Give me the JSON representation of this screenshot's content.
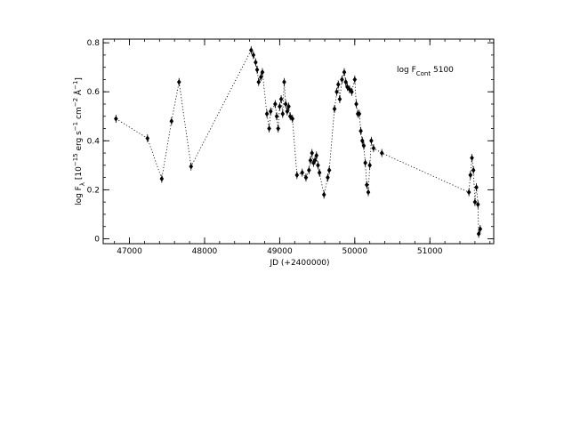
{
  "chart_data": {
    "type": "scatter",
    "title": "",
    "xlabel": "JD (+2400000)",
    "ylabel_parts": {
      "main": "log F",
      "sub": "λ",
      "rest1": " [10",
      "sup1": "−15",
      "rest2": " erg s",
      "sup2": "−1",
      "rest3": " cm",
      "sup3": "−2",
      "rest4": " Å",
      "sup4": "−1",
      "rest5": "]"
    },
    "annotation": {
      "main": "log F",
      "sub": "Cont",
      "rest": " 5100"
    },
    "xlim": [
      46650,
      51850
    ],
    "ylim": [
      -0.02,
      0.815
    ],
    "x_major_ticks": [
      47000,
      48000,
      49000,
      50000,
      51000
    ],
    "x_tick_labels": [
      "47000",
      "48000",
      "49000",
      "50000",
      "51000"
    ],
    "x_minor_step": 200,
    "y_major_ticks": [
      0,
      0.2,
      0.4,
      0.6,
      0.8
    ],
    "y_tick_labels": [
      "0",
      "0.2",
      "0.4",
      "0.6",
      "0.8"
    ],
    "y_minor_step": 0.05,
    "connect_points": true,
    "line_style": "dotted",
    "marker": "filled-diamond",
    "error_bars": true,
    "grid": false,
    "legend": "none",
    "color": "#000000",
    "series": [
      {
        "x": [
          46820,
          47240,
          47430,
          47560,
          47660,
          47820,
          48620,
          48650,
          48680,
          48700,
          48720,
          48750,
          48770,
          48830,
          48860,
          48880,
          48940,
          48960,
          48980,
          49000,
          49020,
          49040,
          49060,
          49080,
          49100,
          49120,
          49140,
          49170,
          49230,
          49300,
          49350,
          49390,
          49410,
          49430,
          49450,
          49470,
          49490,
          49510,
          49530,
          49590,
          49640,
          49660,
          49730,
          49760,
          49780,
          49800,
          49830,
          49860,
          49880,
          49900,
          49930,
          49960,
          50000,
          50020,
          50040,
          50060,
          50080,
          50100,
          50120,
          50140,
          50160,
          50180,
          50200,
          50220,
          50250,
          50360,
          51520,
          51540,
          51560,
          51580,
          51600,
          51620,
          51640,
          51650,
          51670
        ],
        "y": [
          0.49,
          0.41,
          0.245,
          0.48,
          0.64,
          0.295,
          0.77,
          0.75,
          0.72,
          0.69,
          0.64,
          0.66,
          0.68,
          0.51,
          0.45,
          0.52,
          0.55,
          0.5,
          0.45,
          0.54,
          0.57,
          0.51,
          0.64,
          0.55,
          0.52,
          0.54,
          0.5,
          0.49,
          0.26,
          0.27,
          0.25,
          0.28,
          0.32,
          0.35,
          0.31,
          0.32,
          0.34,
          0.3,
          0.27,
          0.18,
          0.25,
          0.28,
          0.53,
          0.6,
          0.63,
          0.57,
          0.65,
          0.68,
          0.64,
          0.62,
          0.61,
          0.6,
          0.65,
          0.55,
          0.51,
          0.51,
          0.44,
          0.4,
          0.38,
          0.31,
          0.22,
          0.19,
          0.3,
          0.4,
          0.37,
          0.35,
          0.19,
          0.26,
          0.33,
          0.28,
          0.15,
          0.21,
          0.14,
          0.02,
          0.04
        ]
      }
    ]
  }
}
